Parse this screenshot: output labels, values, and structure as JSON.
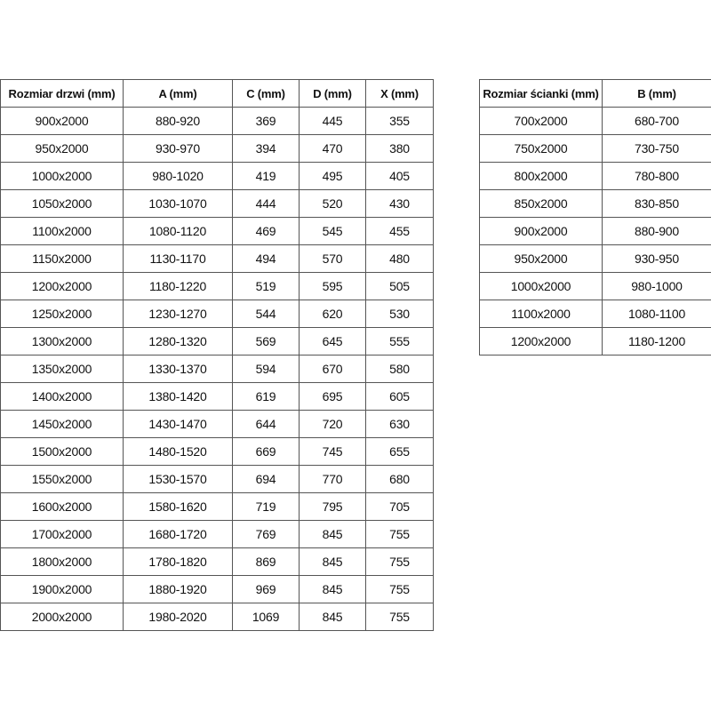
{
  "doors_table": {
    "headers": [
      "Rozmiar drzwi (mm)",
      "A (mm)",
      "C (mm)",
      "D (mm)",
      "X (mm)"
    ],
    "rows": [
      [
        "900x2000",
        "880-920",
        "369",
        "445",
        "355"
      ],
      [
        "950x2000",
        "930-970",
        "394",
        "470",
        "380"
      ],
      [
        "1000x2000",
        "980-1020",
        "419",
        "495",
        "405"
      ],
      [
        "1050x2000",
        "1030-1070",
        "444",
        "520",
        "430"
      ],
      [
        "1100x2000",
        "1080-1120",
        "469",
        "545",
        "455"
      ],
      [
        "1150x2000",
        "1130-1170",
        "494",
        "570",
        "480"
      ],
      [
        "1200x2000",
        "1180-1220",
        "519",
        "595",
        "505"
      ],
      [
        "1250x2000",
        "1230-1270",
        "544",
        "620",
        "530"
      ],
      [
        "1300x2000",
        "1280-1320",
        "569",
        "645",
        "555"
      ],
      [
        "1350x2000",
        "1330-1370",
        "594",
        "670",
        "580"
      ],
      [
        "1400x2000",
        "1380-1420",
        "619",
        "695",
        "605"
      ],
      [
        "1450x2000",
        "1430-1470",
        "644",
        "720",
        "630"
      ],
      [
        "1500x2000",
        "1480-1520",
        "669",
        "745",
        "655"
      ],
      [
        "1550x2000",
        "1530-1570",
        "694",
        "770",
        "680"
      ],
      [
        "1600x2000",
        "1580-1620",
        "719",
        "795",
        "705"
      ],
      [
        "1700x2000",
        "1680-1720",
        "769",
        "845",
        "755"
      ],
      [
        "1800x2000",
        "1780-1820",
        "869",
        "845",
        "755"
      ],
      [
        "1900x2000",
        "1880-1920",
        "969",
        "845",
        "755"
      ],
      [
        "2000x2000",
        "1980-2020",
        "1069",
        "845",
        "755"
      ]
    ]
  },
  "wall_table": {
    "headers": [
      "Rozmiar ścianki (mm)",
      "B (mm)"
    ],
    "rows": [
      [
        "700x2000",
        "680-700"
      ],
      [
        "750x2000",
        "730-750"
      ],
      [
        "800x2000",
        "780-800"
      ],
      [
        "850x2000",
        "830-850"
      ],
      [
        "900x2000",
        "880-900"
      ],
      [
        "950x2000",
        "930-950"
      ],
      [
        "1000x2000",
        "980-1000"
      ],
      [
        "1100x2000",
        "1080-1100"
      ],
      [
        "1200x2000",
        "1180-1200"
      ]
    ]
  }
}
